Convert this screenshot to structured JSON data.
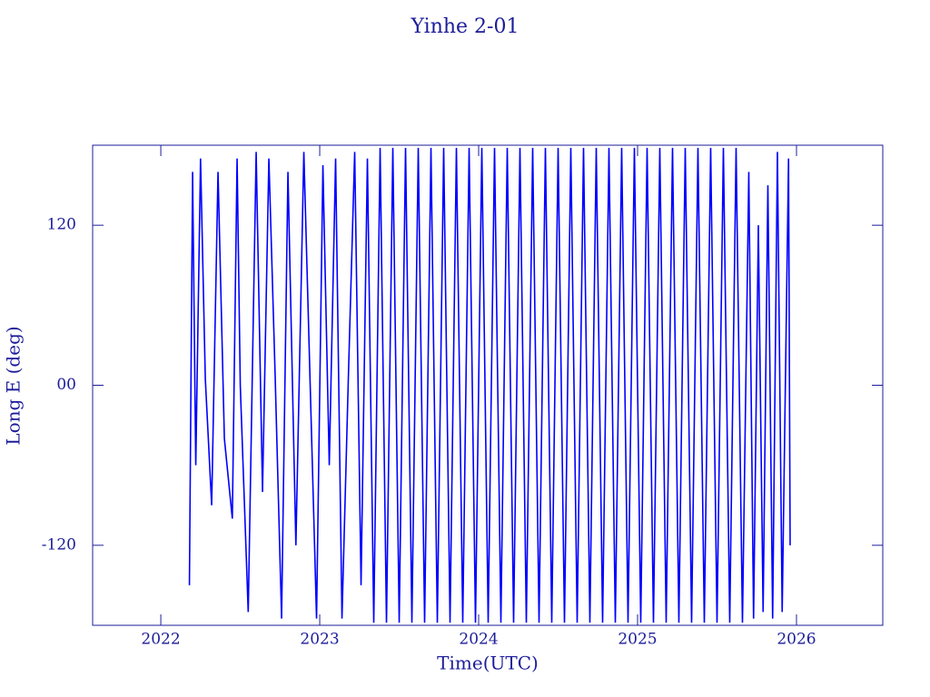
{
  "chart_data": {
    "type": "line",
    "title": "Yinhe 2-01",
    "x_label": "Time(UTC)",
    "y_label": "Long E (deg)",
    "xlim": [
      2021.571,
      2026.543
    ],
    "ylim": [
      -180,
      180
    ],
    "xticks": [
      2022,
      2023,
      2024,
      2025,
      2026
    ],
    "yticks": [
      -120,
      {
        "value": 0,
        "label": "00"
      },
      120
    ],
    "series": [
      {
        "color": "#0000ff",
        "x": [
          2022.18,
          2022.2,
          2022.22,
          2022.25,
          2022.28,
          2022.32,
          2022.36,
          2022.4,
          2022.45,
          2022.48,
          2022.5,
          2022.55,
          2022.6,
          2022.64,
          2022.68,
          2022.72,
          2022.76,
          2022.8,
          2022.85,
          2022.9,
          2022.94,
          2022.98,
          2023.02,
          2023.06,
          2023.1,
          2023.14,
          2023.18,
          2023.22,
          2023.26,
          2023.3,
          2023.34,
          2023.38,
          2023.42,
          2023.46,
          2023.5,
          2023.54,
          2023.58,
          2023.62,
          2023.66,
          2023.7,
          2023.74,
          2023.78,
          2023.82,
          2023.86,
          2023.9,
          2023.94,
          2023.98,
          2024.02,
          2024.06,
          2024.1,
          2024.14,
          2024.18,
          2024.22,
          2024.26,
          2024.3,
          2024.34,
          2024.38,
          2024.42,
          2024.46,
          2024.5,
          2024.54,
          2024.58,
          2024.62,
          2024.66,
          2024.7,
          2024.74,
          2024.78,
          2024.82,
          2024.86,
          2024.9,
          2024.94,
          2024.98,
          2025.02,
          2025.06,
          2025.1,
          2025.14,
          2025.18,
          2025.22,
          2025.26,
          2025.3,
          2025.34,
          2025.38,
          2025.42,
          2025.46,
          2025.5,
          2025.54,
          2025.58,
          2025.62,
          2025.66,
          2025.7,
          2025.73,
          2025.76,
          2025.79,
          2025.82,
          2025.85,
          2025.88,
          2025.91,
          2025.95,
          2025.96
        ],
        "values": [
          -150,
          160,
          -60,
          170,
          5,
          -90,
          160,
          -40,
          -100,
          170,
          0,
          -170,
          175,
          -80,
          170,
          5,
          -175,
          160,
          -120,
          175,
          0,
          -175,
          165,
          -60,
          170,
          -175,
          5,
          175,
          -150,
          170,
          -178,
          178,
          -178,
          178,
          -178,
          178,
          -178,
          178,
          -178,
          178,
          -178,
          178,
          -178,
          178,
          -178,
          178,
          -178,
          178,
          -178,
          178,
          -178,
          178,
          -178,
          178,
          -178,
          178,
          -178,
          178,
          -178,
          178,
          -178,
          178,
          -178,
          178,
          -178,
          178,
          -178,
          178,
          -178,
          178,
          -178,
          178,
          -178,
          178,
          -178,
          178,
          -178,
          178,
          -178,
          178,
          -178,
          178,
          -178,
          178,
          -178,
          178,
          -178,
          178,
          -178,
          160,
          -175,
          120,
          -170,
          150,
          -175,
          175,
          -170,
          170,
          -120
        ]
      }
    ]
  }
}
